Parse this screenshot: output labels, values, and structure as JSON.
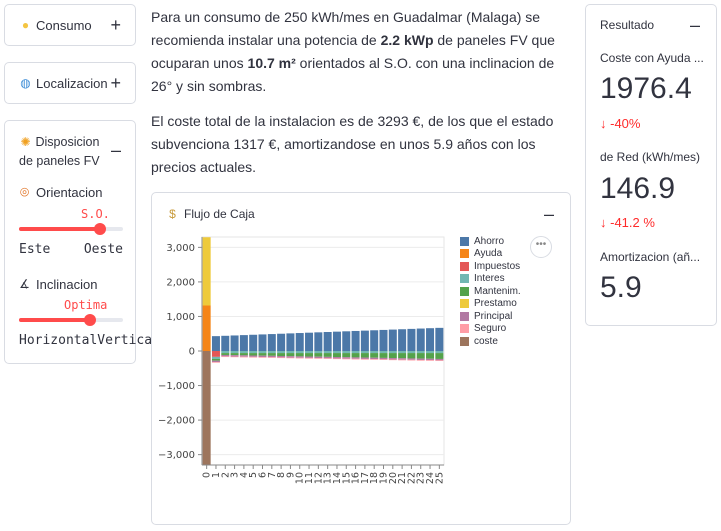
{
  "sidebar": {
    "consumo": {
      "label": "Consumo",
      "icon": "lightbulb-icon"
    },
    "localizacion": {
      "label": "Localizacion",
      "icon": "globe-icon"
    },
    "disposicion": {
      "label_line1": "Disposicion",
      "label_line2": "de paneles FV",
      "icon": "sun-icon",
      "orientacion": {
        "label": "Orientacion",
        "value": "S.O.",
        "min": "Este",
        "max": "Oeste",
        "position": 0.78
      },
      "inclinacion": {
        "label": "Inclinacion",
        "value": "Optima",
        "min": "Horizontal",
        "max": "Vertical",
        "position": 0.68
      }
    }
  },
  "main": {
    "p1": {
      "a": "Para un consumo de 250 kWh/mes en Guadalmar (Malaga) se recomienda instalar una potencia de ",
      "power": "2.2 kWp",
      "b": " de paneles FV que ocuparan unos ",
      "area": "10.7 m²",
      "c": " orientados al S.O. con una inclinacion de 26° y sin sombras."
    },
    "p2": "El coste total de la instalacion es de 3293 €, de los que el estado subvenciona 1317 €, amortizandose en unos 5.9 años con los precios actuales.",
    "chart_title": "Flujo de Caja"
  },
  "resultado": {
    "title": "Resultado",
    "coste_label": "Coste con Ayuda ...",
    "coste_value": "1976.4",
    "coste_delta": "-40%",
    "red_label": "de Red (kWh/mes)",
    "red_value": "146.9",
    "red_delta": "-41.2 %",
    "amort_label": "Amortizacion (añ...",
    "amort_value": "5.9"
  },
  "chart_data": {
    "type": "bar",
    "stacked": true,
    "title": "Flujo de Caja",
    "x": [
      0,
      1,
      2,
      3,
      4,
      5,
      6,
      7,
      8,
      9,
      10,
      11,
      12,
      13,
      14,
      15,
      16,
      17,
      18,
      19,
      20,
      21,
      22,
      23,
      24,
      25
    ],
    "yticks": [
      "3,000",
      "2,000",
      "1,000",
      "0",
      "−1,000",
      "−2,000",
      "−3,000"
    ],
    "ylim": [
      -3300,
      3300
    ],
    "grid": true,
    "legend_position": "right",
    "series": [
      {
        "name": "Ahorro",
        "color": "#4c78a8",
        "values": [
          0,
          430,
          440,
          450,
          460,
          470,
          480,
          490,
          500,
          510,
          520,
          530,
          540,
          550,
          560,
          570,
          580,
          590,
          600,
          610,
          620,
          630,
          640,
          650,
          660,
          670
        ]
      },
      {
        "name": "Ayuda",
        "color": "#f58518",
        "values": [
          1317,
          0,
          0,
          0,
          0,
          0,
          0,
          0,
          0,
          0,
          0,
          0,
          0,
          0,
          0,
          0,
          0,
          0,
          0,
          0,
          0,
          0,
          0,
          0,
          0,
          0
        ]
      },
      {
        "name": "Impuestos",
        "color": "#e45756",
        "values": [
          0,
          -170,
          0,
          0,
          0,
          0,
          0,
          0,
          0,
          0,
          0,
          0,
          0,
          0,
          0,
          0,
          0,
          0,
          0,
          0,
          0,
          0,
          0,
          0,
          0,
          0
        ]
      },
      {
        "name": "Interes",
        "color": "#72b7b2",
        "values": [
          0,
          -60,
          -60,
          -60,
          -60,
          -60,
          -60,
          -60,
          -60,
          -60,
          -60,
          -60,
          -60,
          -60,
          -60,
          -60,
          -60,
          -60,
          -60,
          -60,
          -60,
          -60,
          -60,
          -60,
          -60,
          -60
        ]
      },
      {
        "name": "Mantenim.",
        "color": "#54a24b",
        "values": [
          0,
          -50,
          -55,
          -60,
          -65,
          -70,
          -75,
          -80,
          -85,
          -90,
          -95,
          -100,
          -105,
          -110,
          -115,
          -120,
          -125,
          -130,
          -135,
          -140,
          -145,
          -150,
          -155,
          -160,
          -165,
          -170
        ]
      },
      {
        "name": "Prestamo",
        "color": "#eeca3b",
        "values": [
          1976,
          0,
          0,
          0,
          0,
          0,
          0,
          0,
          0,
          0,
          0,
          0,
          0,
          0,
          0,
          0,
          0,
          0,
          0,
          0,
          0,
          0,
          0,
          0,
          0,
          0
        ]
      },
      {
        "name": "Principal",
        "color": "#b279a2",
        "values": [
          0,
          -40,
          -40,
          -40,
          -40,
          -40,
          -40,
          -40,
          -40,
          -40,
          -40,
          -40,
          -40,
          -40,
          -40,
          -40,
          -40,
          -40,
          -40,
          -40,
          -40,
          -40,
          -40,
          -40,
          -40,
          -40
        ]
      },
      {
        "name": "Seguro",
        "color": "#ff9da6",
        "values": [
          0,
          -20,
          -20,
          -20,
          -20,
          -20,
          -20,
          -20,
          -20,
          -20,
          -20,
          -20,
          -20,
          -20,
          -20,
          -20,
          -20,
          -20,
          -20,
          -20,
          -20,
          -20,
          -20,
          -20,
          -20,
          -20
        ]
      },
      {
        "name": "coste",
        "color": "#9d755d",
        "values": [
          -3293,
          0,
          0,
          0,
          0,
          0,
          0,
          0,
          0,
          0,
          0,
          0,
          0,
          0,
          0,
          0,
          0,
          0,
          0,
          0,
          0,
          0,
          0,
          0,
          0,
          0
        ]
      }
    ]
  }
}
